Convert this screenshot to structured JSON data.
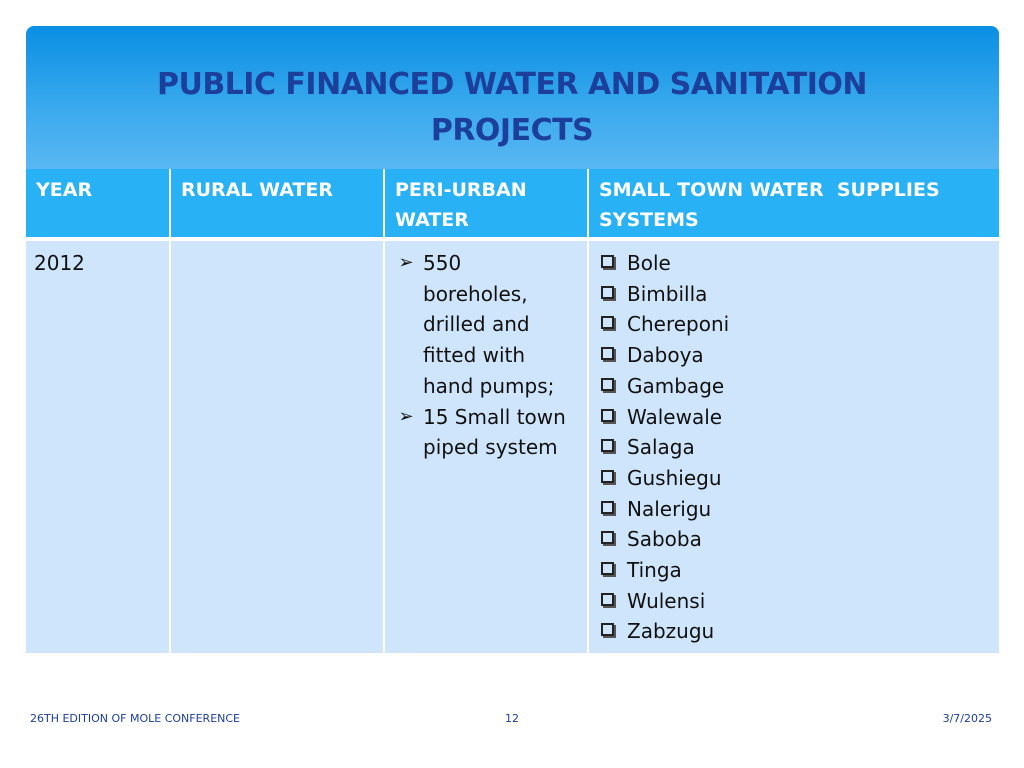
{
  "title": {
    "line1": "PUBLIC FINANCED WATER AND SANITATION",
    "line2": "PROJECTS"
  },
  "table": {
    "headers": {
      "year": "YEAR",
      "rural": "RURAL WATER",
      "peri_line1": "PERI-URBAN",
      "peri_line2": "WATER",
      "small_line1": "SMALL TOWN WATER  SUPPLIES",
      "small_line2": "SYSTEMS"
    },
    "row": {
      "year": "2012",
      "rural": "",
      "peri_urban": [
        [
          "550",
          "boreholes,",
          "drilled and",
          "fitted with",
          "hand pumps;"
        ],
        [
          "15 Small town",
          "piped system"
        ]
      ],
      "small_town": [
        "Bole",
        "Bimbilla",
        "Chereponi",
        "Daboya",
        "Gambage",
        "Walewale",
        "Salaga",
        "Gushiegu",
        "Nalerigu",
        "Saboba",
        "Tinga",
        "Wulensi",
        "Zabzugu"
      ]
    }
  },
  "footer": {
    "left": "26TH EDITION OF MOLE CONFERENCE",
    "page": "12",
    "date": "3/7/2025"
  },
  "icons": {
    "arrow_bullet": "arrow-bullet-icon",
    "checkbox_bullet": "checkbox-bullet-icon"
  },
  "colors": {
    "title_text": "#1d3f9c",
    "header_bg": "#29b1f5",
    "cell_bg": "#cfe5fb"
  }
}
